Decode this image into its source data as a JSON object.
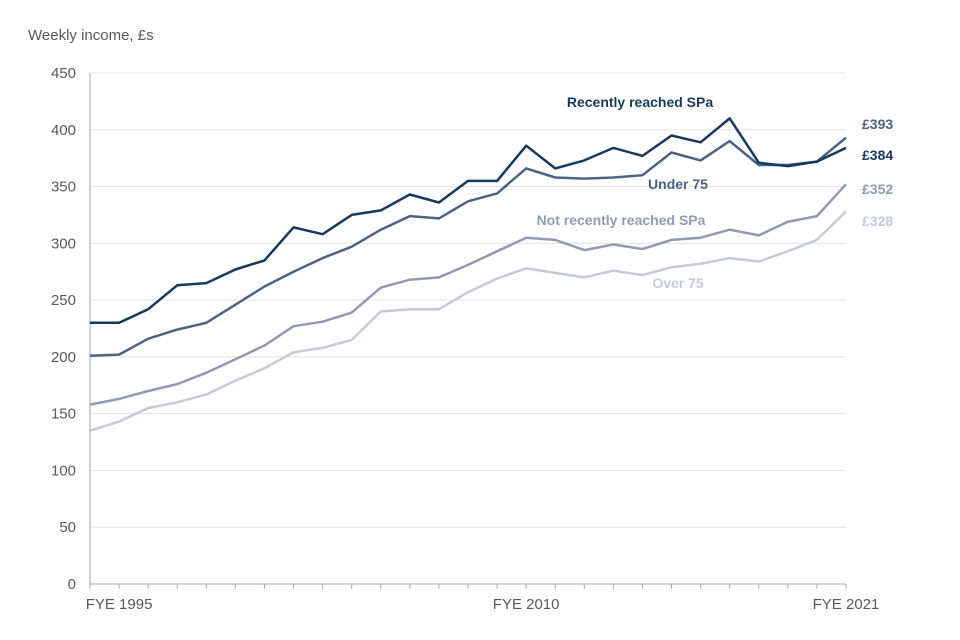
{
  "chart_data": {
    "type": "line",
    "ylabel": "Weekly income, £s",
    "ylim": [
      0,
      450
    ],
    "yticks": [
      0,
      50,
      100,
      150,
      200,
      250,
      300,
      350,
      400,
      450
    ],
    "x_labels": [
      "FYE 1995",
      "FYE 2010",
      "FYE 2021"
    ],
    "grid": true,
    "series": [
      {
        "name": "Over 75",
        "color": "#c4cad9",
        "end_label": "£328",
        "values": [
          135,
          143,
          155,
          160,
          167,
          179,
          190,
          204,
          208,
          215,
          240,
          242,
          242,
          257,
          269,
          278,
          274,
          270,
          276,
          272,
          279,
          282,
          287,
          284,
          293,
          303,
          328
        ]
      },
      {
        "name": "Not recently reached SPa",
        "color": "#8f9ab3",
        "end_label": "£352",
        "values": [
          158,
          163,
          170,
          176,
          186,
          198,
          210,
          227,
          231,
          239,
          261,
          268,
          270,
          281,
          293,
          305,
          303,
          294,
          299,
          295,
          303,
          305,
          312,
          307,
          319,
          324,
          352
        ]
      },
      {
        "name": "Under 75",
        "color": "#4d6384",
        "end_label": "£393",
        "values": [
          201,
          202,
          216,
          224,
          230,
          246,
          262,
          275,
          287,
          297,
          312,
          324,
          322,
          337,
          344,
          366,
          358,
          357,
          358,
          360,
          380,
          373,
          390,
          369,
          369,
          372,
          393
        ]
      },
      {
        "name": "Recently reached SPa",
        "color": "#163a5e",
        "end_label": "£384",
        "values": [
          230,
          230,
          242,
          263,
          265,
          277,
          285,
          314,
          308,
          325,
          329,
          343,
          336,
          355,
          355,
          386,
          366,
          373,
          384,
          377,
          395,
          389,
          410,
          371,
          368,
          372,
          384
        ]
      }
    ]
  }
}
